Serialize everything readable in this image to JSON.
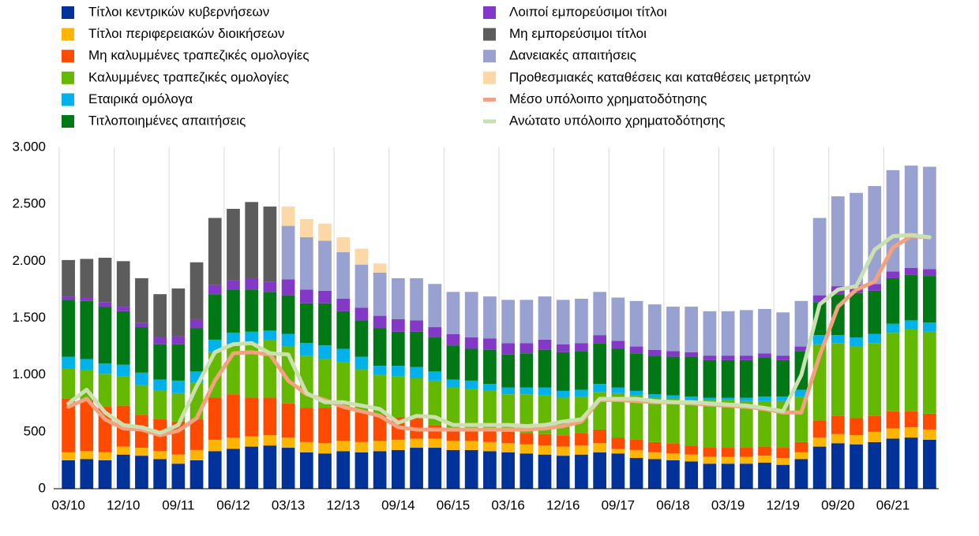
{
  "chart_data": {
    "type": "stacked_bar_line",
    "categories": [
      "03/10",
      null,
      null,
      "12/10",
      null,
      null,
      "09/11",
      null,
      null,
      "06/12",
      null,
      null,
      "03/13",
      null,
      null,
      "12/13",
      null,
      null,
      "09/14",
      null,
      null,
      "06/15",
      null,
      null,
      "03/16",
      null,
      null,
      "12/16",
      null,
      null,
      "09/17",
      null,
      null,
      "06/18",
      null,
      null,
      "03/19",
      null,
      null,
      "12/19",
      null,
      null,
      "09/20",
      null,
      null,
      "06/21",
      null,
      null
    ],
    "ylim": [
      0,
      3000
    ],
    "yticks": [
      0,
      500,
      {
        "value": 1000,
        "label": "1.000"
      },
      {
        "value": 1500,
        "label": "1.500"
      },
      {
        "value": 2000,
        "label": "2.000"
      },
      {
        "value": 2500,
        "label": "2.500"
      },
      {
        "value": 3000,
        "label": "3.000"
      }
    ],
    "series": [
      {
        "name": "Τίτλοι κεντρικών κυβερνήσεων",
        "kind": "bar",
        "color": "#003299",
        "values": [
          250,
          260,
          250,
          300,
          290,
          260,
          220,
          250,
          330,
          350,
          370,
          380,
          360,
          320,
          310,
          330,
          320,
          330,
          340,
          360,
          360,
          340,
          340,
          330,
          320,
          310,
          300,
          290,
          300,
          320,
          310,
          270,
          260,
          250,
          240,
          220,
          220,
          220,
          230,
          210,
          260,
          370,
          400,
          390,
          410,
          440,
          450,
          430
        ]
      },
      {
        "name": "Τίτλοι περιφερειακών διοικήσεων",
        "kind": "bar",
        "color": "#ffb400",
        "values": [
          70,
          70,
          70,
          70,
          70,
          70,
          80,
          90,
          100,
          100,
          90,
          90,
          90,
          90,
          90,
          90,
          90,
          90,
          90,
          80,
          80,
          80,
          80,
          80,
          80,
          80,
          80,
          80,
          80,
          80,
          40,
          70,
          60,
          60,
          60,
          60,
          60,
          60,
          60,
          60,
          60,
          80,
          80,
          80,
          90,
          90,
          90,
          90
        ]
      },
      {
        "name": "Μη καλυμμένες τραπεζικές ομολογίες",
        "kind": "bar",
        "color": "#ff4b00",
        "values": [
          470,
          450,
          400,
          360,
          290,
          280,
          290,
          270,
          370,
          380,
          340,
          330,
          300,
          300,
          310,
          300,
          260,
          230,
          200,
          180,
          120,
          110,
          110,
          100,
          100,
          100,
          100,
          100,
          110,
          120,
          100,
          90,
          90,
          90,
          80,
          80,
          80,
          80,
          80,
          90,
          90,
          150,
          160,
          150,
          140,
          150,
          140,
          140
        ]
      },
      {
        "name": "Καλυμμένες τραπεζικές ομολογίες",
        "kind": "bar",
        "color": "#65b800",
        "values": [
          270,
          260,
          290,
          260,
          260,
          250,
          250,
          320,
          400,
          440,
          480,
          510,
          500,
          460,
          430,
          390,
          380,
          350,
          360,
          350,
          390,
          360,
          350,
          350,
          330,
          340,
          340,
          330,
          320,
          330,
          390,
          390,
          390,
          390,
          400,
          420,
          420,
          410,
          400,
          410,
          400,
          670,
          640,
          630,
          640,
          690,
          720,
          720
        ]
      },
      {
        "name": "Εταιρικά ομόλογα",
        "kind": "bar",
        "color": "#00b1ea",
        "values": [
          100,
          100,
          90,
          100,
          110,
          100,
          110,
          100,
          110,
          100,
          100,
          80,
          110,
          110,
          120,
          120,
          110,
          80,
          90,
          100,
          80,
          70,
          70,
          60,
          60,
          60,
          70,
          60,
          60,
          70,
          50,
          40,
          30,
          30,
          30,
          20,
          20,
          30,
          40,
          40,
          60,
          80,
          70,
          80,
          80,
          80,
          80,
          80
        ]
      },
      {
        "name": "Τιτλοποιημένες απαιτήσεις",
        "kind": "bar",
        "color": "#007816",
        "values": [
          500,
          510,
          500,
          470,
          400,
          310,
          320,
          380,
          400,
          380,
          370,
          340,
          340,
          350,
          370,
          330,
          320,
          330,
          300,
          310,
          300,
          300,
          280,
          300,
          290,
          300,
          330,
          340,
          340,
          360,
          340,
          330,
          340,
          340,
          350,
          330,
          330,
          330,
          340,
          320,
          340,
          290,
          360,
          390,
          380,
          400,
          400,
          410
        ]
      },
      {
        "name": "Λοιποί εμπορεύσιμοι τίτλοι",
        "kind": "bar",
        "color": "#8139c6",
        "values": [
          30,
          30,
          40,
          40,
          40,
          60,
          70,
          80,
          80,
          80,
          100,
          90,
          140,
          120,
          110,
          110,
          110,
          110,
          110,
          100,
          90,
          100,
          100,
          100,
          100,
          90,
          90,
          70,
          70,
          70,
          70,
          60,
          50,
          50,
          40,
          40,
          40,
          40,
          40,
          40,
          40,
          60,
          70,
          70,
          60,
          60,
          60,
          60
        ]
      },
      {
        "name": "Μη εμπορεύσιμοι τίτλοι",
        "kind": "bar",
        "color": "#5c5c5c",
        "values": [
          320,
          340,
          390,
          400,
          390,
          380,
          420,
          500,
          590,
          630,
          670,
          660,
          0,
          0,
          0,
          0,
          0,
          0,
          0,
          0,
          0,
          0,
          0,
          0,
          0,
          0,
          0,
          0,
          0,
          0,
          0,
          0,
          0,
          0,
          0,
          0,
          0,
          0,
          0,
          0,
          0,
          0,
          0,
          0,
          0,
          0,
          0,
          0
        ]
      },
      {
        "name": "Δανειακές απαιτήσεις",
        "kind": "bar",
        "color": "#98a1d0",
        "values": [
          0,
          0,
          0,
          0,
          0,
          0,
          0,
          0,
          0,
          0,
          0,
          0,
          470,
          460,
          440,
          410,
          380,
          380,
          360,
          370,
          380,
          370,
          400,
          370,
          380,
          380,
          380,
          390,
          390,
          380,
          380,
          400,
          400,
          390,
          400,
          390,
          390,
          400,
          390,
          380,
          400,
          680,
          790,
          810,
          860,
          890,
          900,
          900
        ]
      },
      {
        "name": "Προθεσμιακές καταθέσεις και καταθέσεις μετρητών",
        "kind": "bar",
        "color": "#fdd8a7",
        "values": [
          0,
          0,
          0,
          0,
          0,
          0,
          0,
          0,
          0,
          0,
          0,
          0,
          170,
          160,
          150,
          130,
          140,
          80,
          0,
          0,
          0,
          0,
          0,
          0,
          0,
          0,
          0,
          0,
          0,
          0,
          0,
          0,
          0,
          0,
          0,
          0,
          0,
          0,
          0,
          0,
          0,
          0,
          0,
          0,
          0,
          0,
          0,
          0
        ]
      },
      {
        "name": "Μέσο υπόλοιπο χρηματοδότησης",
        "kind": "line",
        "color": "#f3a27f",
        "values": [
          720,
          790,
          610,
          530,
          520,
          470,
          510,
          620,
          950,
          1190,
          1200,
          1180,
          950,
          830,
          780,
          720,
          680,
          640,
          540,
          520,
          520,
          520,
          520,
          520,
          520,
          520,
          530,
          550,
          590,
          780,
          780,
          770,
          760,
          760,
          750,
          740,
          730,
          720,
          700,
          670,
          670,
          1170,
          1600,
          1750,
          1820,
          2120,
          2220,
          2210
        ]
      },
      {
        "name": "Ανώτατο υπόλοιπο χρηματοδότησης",
        "kind": "line",
        "color": "#cbe0b0",
        "values": [
          750,
          870,
          670,
          560,
          540,
          490,
          560,
          900,
          1200,
          1270,
          1280,
          1190,
          1180,
          840,
          760,
          760,
          730,
          700,
          580,
          640,
          630,
          560,
          560,
          560,
          560,
          550,
          560,
          590,
          610,
          790,
          790,
          790,
          770,
          760,
          760,
          750,
          740,
          730,
          710,
          680,
          1000,
          1620,
          1750,
          1780,
          2100,
          2220,
          2230,
          2210
        ]
      }
    ]
  }
}
